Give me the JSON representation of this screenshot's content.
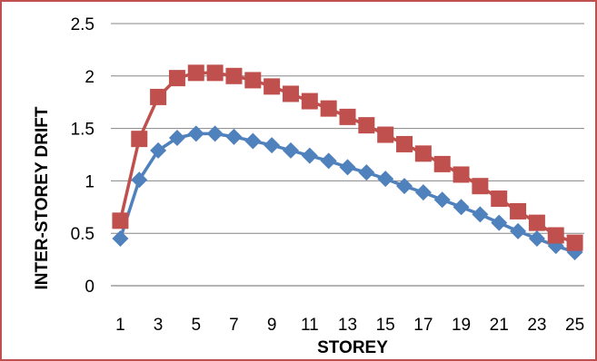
{
  "chart_data": {
    "type": "line",
    "xlabel": "STOREY",
    "ylabel": "INTER-STOREY DRIFT",
    "ylim": [
      0,
      2.5
    ],
    "yticks": [
      0,
      0.5,
      1,
      1.5,
      2,
      2.5
    ],
    "xlim": [
      1,
      25
    ],
    "xtick_labels": [
      "1",
      "3",
      "5",
      "7",
      "9",
      "11",
      "13",
      "15",
      "17",
      "19",
      "21",
      "23",
      "25"
    ],
    "x": [
      1,
      2,
      3,
      4,
      5,
      6,
      7,
      8,
      9,
      10,
      11,
      12,
      13,
      14,
      15,
      16,
      17,
      18,
      19,
      20,
      21,
      22,
      23,
      24,
      25
    ],
    "grid": "horizontal",
    "legend": "none",
    "series": [
      {
        "color": "#c0504d",
        "marker": "square",
        "values": [
          0.62,
          1.4,
          1.8,
          1.98,
          2.03,
          2.03,
          2.0,
          1.96,
          1.9,
          1.83,
          1.76,
          1.69,
          1.61,
          1.53,
          1.44,
          1.35,
          1.26,
          1.16,
          1.06,
          0.95,
          0.83,
          0.71,
          0.6,
          0.48,
          0.41
        ]
      },
      {
        "color": "#4f81bd",
        "marker": "diamond",
        "values": [
          0.45,
          1.01,
          1.29,
          1.41,
          1.45,
          1.45,
          1.42,
          1.38,
          1.34,
          1.29,
          1.24,
          1.19,
          1.13,
          1.08,
          1.02,
          0.95,
          0.89,
          0.82,
          0.75,
          0.68,
          0.6,
          0.52,
          0.45,
          0.38,
          0.32
        ]
      }
    ]
  }
}
